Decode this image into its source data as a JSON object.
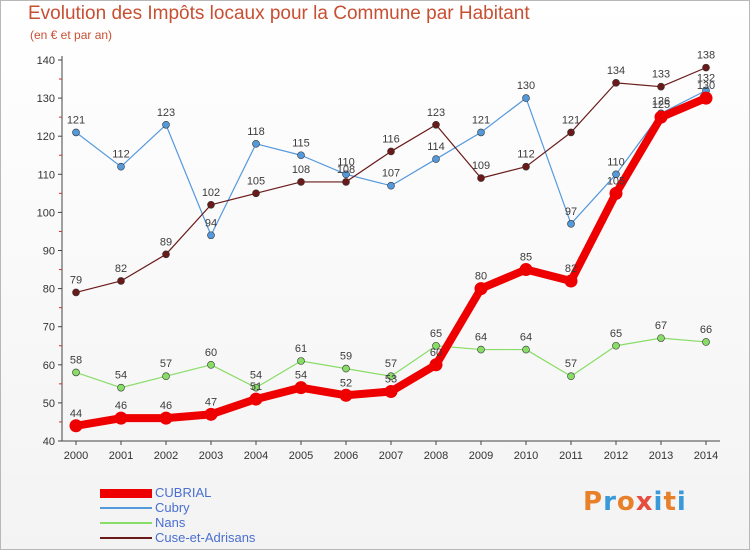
{
  "header": {
    "title": "Evolution des Impôts locaux pour la Commune par Habitant",
    "subtitle": "(en € et par an)"
  },
  "brand": {
    "text": "Proxiti",
    "colors": [
      "#e8802a",
      "#3a9ad9",
      "#e8802a",
      "#e74c3c",
      "#3a9ad9",
      "#e8802a",
      "#3a9ad9"
    ]
  },
  "chart_data": {
    "type": "line",
    "title": "Evolution des Impôts locaux pour la Commune par Habitant",
    "subtitle": "(en € et par an)",
    "xlabel": "",
    "ylabel": "",
    "ylim": [
      40,
      140
    ],
    "yticks": [
      40,
      50,
      60,
      70,
      80,
      90,
      100,
      110,
      120,
      130,
      140
    ],
    "grid": false,
    "legend_position": "bottom-left",
    "x": [
      "2000",
      "2001",
      "2002",
      "2003",
      "2004",
      "2005",
      "2006",
      "2007",
      "2008",
      "2009",
      "2010",
      "2011",
      "2012",
      "2013",
      "2014"
    ],
    "series": [
      {
        "name": "CUBRIAL",
        "color": "#ee0000",
        "values": [
          44,
          46,
          46,
          47,
          51,
          54,
          52,
          53,
          60,
          80,
          85,
          82,
          105,
          125,
          130
        ],
        "labels": [
          "44",
          "46",
          "46",
          "47",
          "51",
          "54",
          "52",
          "53",
          "60",
          "80",
          "85",
          "82",
          "105",
          "125",
          "130"
        ]
      },
      {
        "name": "Cubry",
        "color": "#5599dd",
        "values": [
          121,
          112,
          123,
          94,
          118,
          115,
          110,
          107,
          114,
          121,
          130,
          97,
          110,
          126,
          132
        ],
        "labels": [
          "121",
          "112",
          "123",
          "94",
          "118",
          "115",
          "110",
          "107",
          "114",
          "121",
          "130",
          "97",
          "110",
          "126",
          "132"
        ]
      },
      {
        "name": "Nans",
        "color": "#88dd66",
        "values": [
          58,
          54,
          57,
          60,
          54,
          61,
          59,
          57,
          65,
          64,
          64,
          57,
          65,
          67,
          66
        ],
        "labels": [
          "58",
          "54",
          "57",
          "60",
          "54",
          "61",
          "59",
          "57",
          "65",
          "64",
          "64",
          "57",
          "65",
          "67",
          "66"
        ]
      },
      {
        "name": "Cuse-et-Adrisans",
        "color": "#6b1a1a",
        "values": [
          79,
          82,
          89,
          102,
          105,
          108,
          108,
          116,
          123,
          109,
          112,
          121,
          134,
          133,
          138
        ],
        "labels": [
          "79",
          "82",
          "89",
          "102",
          "105",
          "108",
          "108",
          "116",
          "123",
          "109",
          "112",
          "121",
          "134",
          "133",
          "138"
        ]
      }
    ]
  }
}
